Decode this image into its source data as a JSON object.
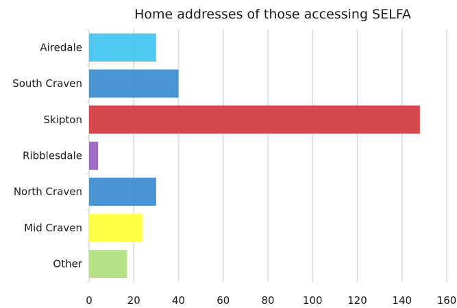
{
  "chart_data": {
    "type": "bar",
    "orientation": "horizontal",
    "title": "Home addresses of those accessing SELFA",
    "xlabel": "",
    "ylabel": "",
    "categories": [
      "Airedale",
      "South Craven",
      "Skipton",
      "Ribblesdale",
      "North Craven",
      "Mid Craven",
      "Other"
    ],
    "values": [
      30,
      40,
      148,
      4,
      30,
      24,
      17
    ],
    "colors": [
      "#47c5f0",
      "#3f8fd2",
      "#d43d44",
      "#9b64c2",
      "#3f8fd2",
      "#ffff3b",
      "#b3df7f"
    ],
    "xlim": [
      0,
      160
    ],
    "xticks": [
      0,
      20,
      40,
      60,
      80,
      100,
      120,
      140,
      160
    ],
    "grid": true,
    "legend": "none"
  }
}
